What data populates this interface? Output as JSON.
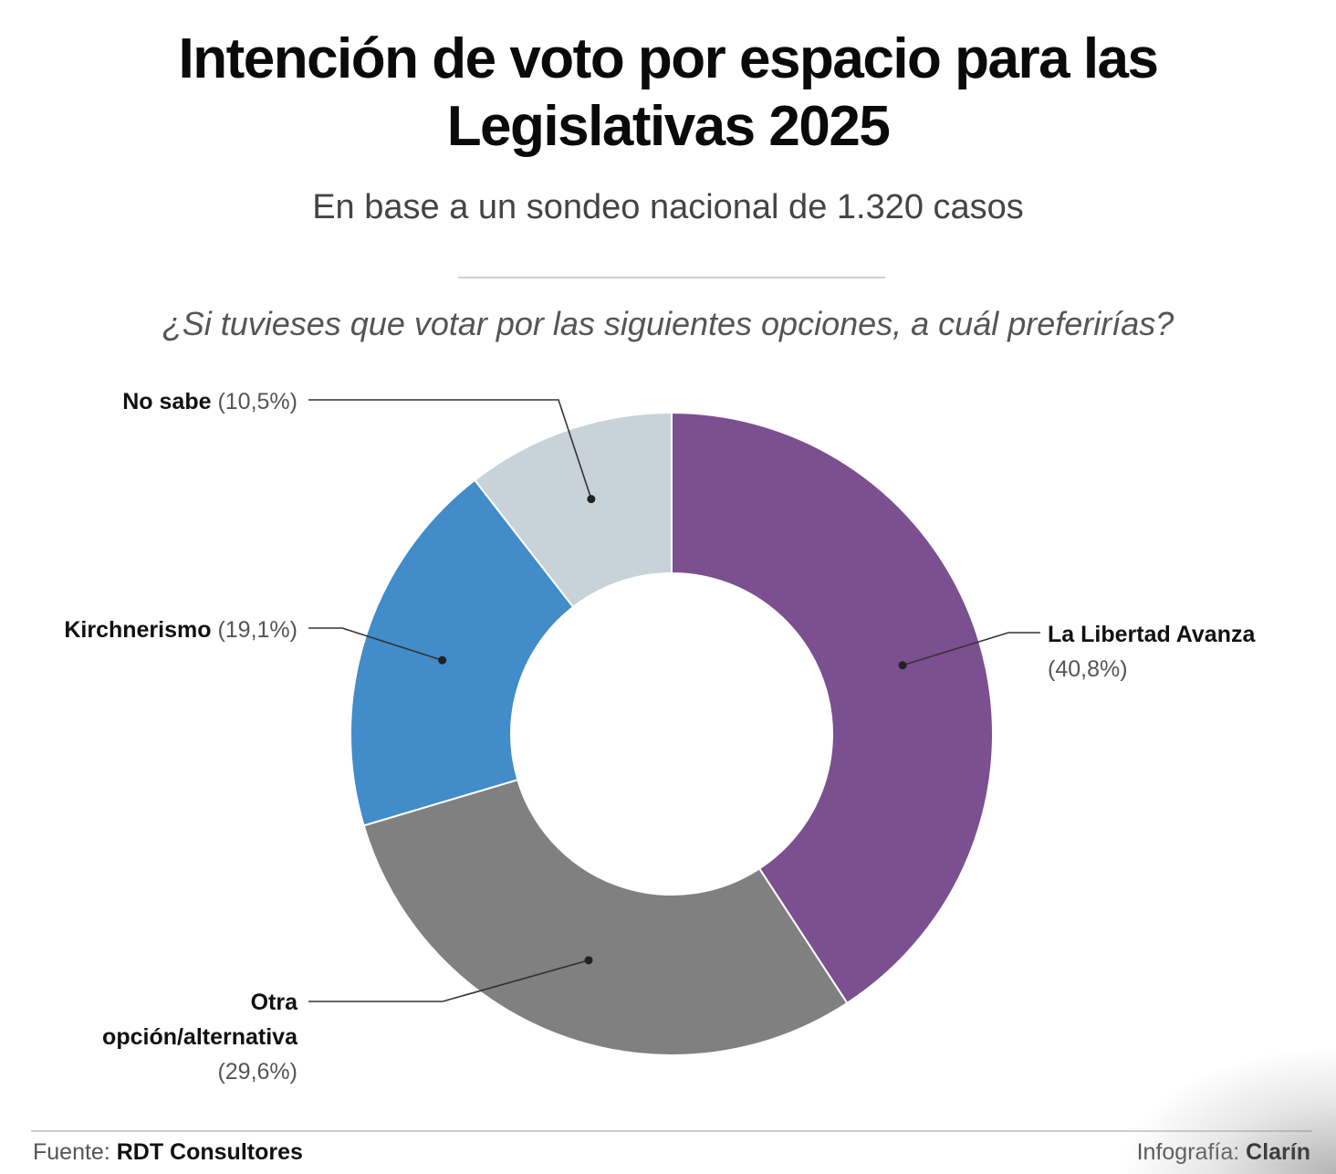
{
  "title_line1": "Intención de voto por espacio para las",
  "title_line2": "Legislativas 2025",
  "subtitle": "En base a un sondeo nacional de 1.320 casos",
  "question": "¿Si tuvieses que votar por las siguientes opciones, a cuál preferirías?",
  "footer": {
    "source_label": "Fuente:",
    "source_name": "RDT Consultores",
    "credit_label": "Infografía:",
    "credit_name": "Clarín"
  },
  "chart_data": {
    "type": "pie",
    "variant": "donut",
    "title": "Intención de voto por espacio para las Legislativas 2025",
    "subtitle": "En base a un sondeo nacional de 1.320 casos",
    "start": "12 o'clock, clockwise",
    "slices": [
      {
        "label": "La Libertad Avanza",
        "value": 40.8,
        "value_label": "(40,8%)",
        "color": "#7b4f90"
      },
      {
        "label": "Otra opción/alternativa",
        "value": 29.6,
        "value_label": "(29,6%)",
        "color": "#808080"
      },
      {
        "label": "Kirchnerismo",
        "value": 19.1,
        "value_label": "(19,1%)",
        "color": "#418cc9"
      },
      {
        "label": "No sabe",
        "value": 10.5,
        "value_label": "(10,5%)",
        "color": "#c8d2d9"
      }
    ]
  }
}
